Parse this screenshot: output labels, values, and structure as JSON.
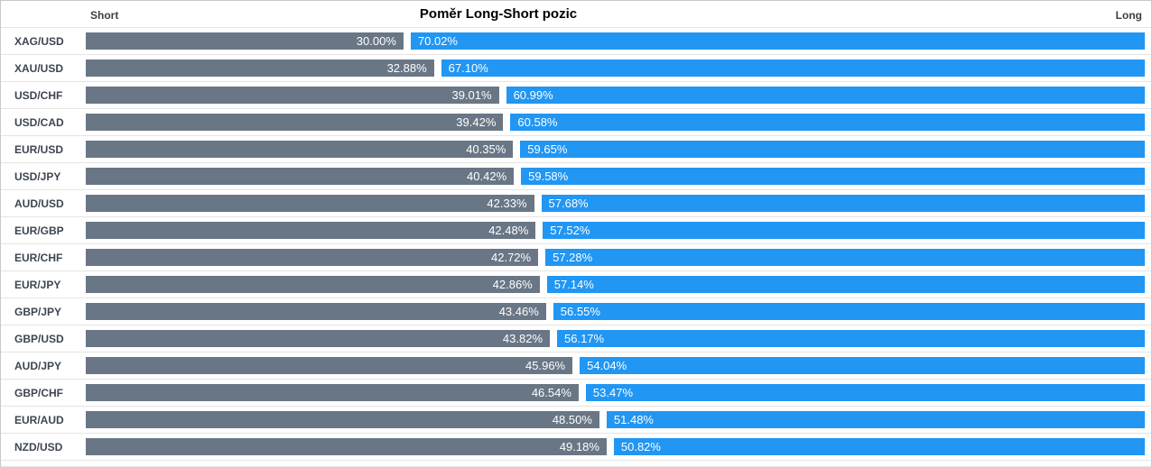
{
  "header": {
    "title": "Poměr Long-Short pozic",
    "short_label": "Short",
    "long_label": "Long"
  },
  "chart_data": {
    "type": "bar",
    "orientation": "horizontal",
    "stacked": true,
    "title": "Poměr Long-Short pozic",
    "left_axis_label": "Short",
    "right_axis_label": "Long",
    "value_range": [
      0,
      100
    ],
    "grid": false,
    "legend_position": "top-corners",
    "categories": [
      "XAG/USD",
      "XAU/USD",
      "USD/CHF",
      "USD/CAD",
      "EUR/USD",
      "USD/JPY",
      "AUD/USD",
      "EUR/GBP",
      "EUR/CHF",
      "EUR/JPY",
      "GBP/JPY",
      "GBP/USD",
      "AUD/JPY",
      "GBP/CHF",
      "EUR/AUD",
      "NZD/USD"
    ],
    "series": [
      {
        "name": "Short",
        "color": "#697686",
        "values": [
          30.0,
          32.88,
          39.01,
          39.42,
          40.35,
          40.42,
          42.33,
          42.48,
          42.72,
          42.86,
          43.46,
          43.82,
          45.96,
          46.54,
          48.5,
          49.18
        ],
        "labels": [
          "30.00%",
          "32.88%",
          "39.01%",
          "39.42%",
          "40.35%",
          "40.42%",
          "42.33%",
          "42.48%",
          "42.72%",
          "42.86%",
          "43.46%",
          "43.82%",
          "45.96%",
          "46.54%",
          "48.50%",
          "49.18%"
        ]
      },
      {
        "name": "Long",
        "color": "#2196f3",
        "values": [
          70.02,
          67.1,
          60.99,
          60.58,
          59.65,
          59.58,
          57.68,
          57.52,
          57.28,
          57.14,
          56.55,
          56.17,
          54.04,
          53.47,
          51.48,
          50.82
        ],
        "labels": [
          "70.02%",
          "67.10%",
          "60.99%",
          "60.58%",
          "59.65%",
          "59.58%",
          "57.68%",
          "57.52%",
          "57.28%",
          "57.14%",
          "56.55%",
          "56.17%",
          "54.04%",
          "53.47%",
          "51.48%",
          "50.82%"
        ]
      }
    ],
    "colors": {
      "short_bar": "#697686",
      "long_bar": "#2196f3",
      "bar_value_text": "#ffffff",
      "row_separator": "#e4e4e4",
      "category_text": "#3d4551",
      "title_text": "#000000"
    }
  }
}
